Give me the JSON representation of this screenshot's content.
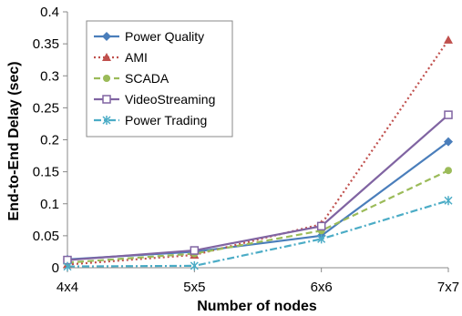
{
  "chart_data": {
    "type": "line",
    "title": "",
    "xlabel": "Number of nodes",
    "ylabel": "End-to-End Delay (sec)",
    "categories": [
      "4x4",
      "5x5",
      "6x6",
      "7x7"
    ],
    "ylim": [
      0,
      0.4
    ],
    "yticks": [
      "0",
      "0.05",
      "0.1",
      "0.15",
      "0.2",
      "0.25",
      "0.3",
      "0.35",
      "0.4"
    ],
    "grid": false,
    "legend_position": "top-left",
    "series": [
      {
        "name": "Power Quality",
        "values": [
          0.013,
          0.025,
          0.05,
          0.197
        ],
        "color": "#4a7ebb",
        "dash": "solid",
        "marker": "diamond"
      },
      {
        "name": "AMI",
        "values": [
          0.005,
          0.02,
          0.068,
          0.356
        ],
        "color": "#c0504d",
        "dash": "dotted",
        "marker": "triangle"
      },
      {
        "name": "SCADA",
        "values": [
          0.008,
          0.022,
          0.058,
          0.152
        ],
        "color": "#9bbb59",
        "dash": "dashed",
        "marker": "circle"
      },
      {
        "name": "VideoStreaming",
        "values": [
          0.012,
          0.027,
          0.065,
          0.239
        ],
        "color": "#8064a2",
        "dash": "solid",
        "marker": "square-open"
      },
      {
        "name": "Power Trading",
        "values": [
          0.002,
          0.003,
          0.045,
          0.105
        ],
        "color": "#4bacc6",
        "dash": "dashdot",
        "marker": "star"
      }
    ]
  }
}
